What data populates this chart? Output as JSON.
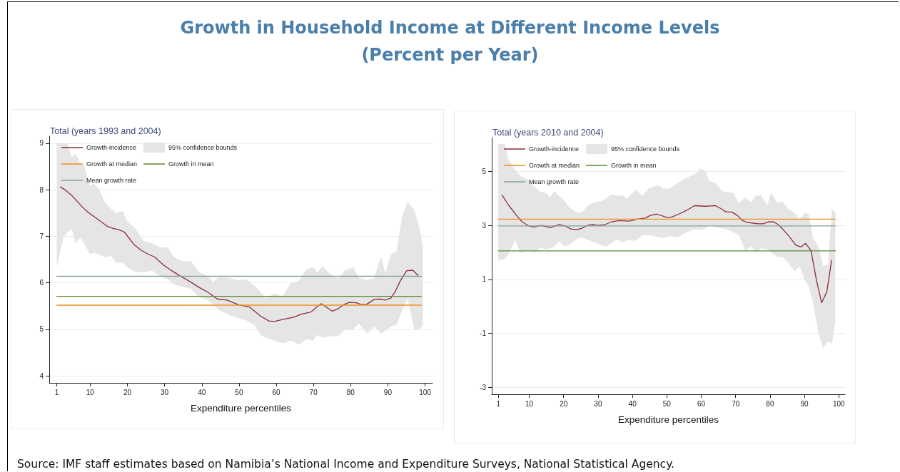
{
  "chart_data": [
    {
      "type": "other",
      "title": "Growth in Household Income at Different Income Levels",
      "subtitle": "(Percent per Year)",
      "annotations": [
        "Source: IMF staff estimates based on Namibia’s National Income and Expenditure Surveys, National Statistical Agency."
      ]
    },
    {
      "type": "line",
      "title": "Total (years 1993 and 2004)",
      "xlabel": "Expenditure percentiles",
      "xlim": [
        -1,
        102
      ],
      "xticks": [
        1,
        10,
        20,
        30,
        40,
        50,
        60,
        70,
        80,
        90,
        100
      ],
      "ylim": [
        3.85,
        9.15
      ],
      "yticks": [
        4,
        5,
        6,
        7,
        8,
        9
      ],
      "grid": "y",
      "legend": "top left",
      "marker": "none",
      "line_style": "solid",
      "series": [
        {
          "name": "Growth-incidence",
          "type": "line",
          "color": "#8c2d3a",
          "x": [
            2.0,
            3.2,
            5.0,
            8.0,
            9.5,
            12.5,
            14.7,
            16.2,
            17.7,
            19.2,
            21.8,
            23.7,
            25.2,
            27.4,
            29.6,
            31.9,
            34.1,
            36.3,
            39.3,
            41.6,
            44.2,
            46.8,
            49.8,
            52.8,
            54.2,
            55.7,
            58.0,
            59.5,
            61.7,
            64.7,
            66.9,
            69.2,
            69.9,
            71.0,
            72.1,
            73.6,
            75.1,
            76.6,
            78.1,
            79.6,
            81.5,
            82.6,
            84.1,
            86.3,
            87.8,
            89.3,
            90.8,
            91.9,
            93.4,
            95.1,
            96.7,
            98.1
          ],
          "values": [
            8.06,
            8.0,
            7.88,
            7.62,
            7.51,
            7.34,
            7.21,
            7.17,
            7.14,
            7.09,
            6.82,
            6.7,
            6.63,
            6.55,
            6.39,
            6.26,
            6.15,
            6.05,
            5.9,
            5.8,
            5.65,
            5.63,
            5.53,
            5.48,
            5.39,
            5.29,
            5.18,
            5.17,
            5.21,
            5.26,
            5.33,
            5.37,
            5.41,
            5.49,
            5.55,
            5.47,
            5.39,
            5.44,
            5.53,
            5.58,
            5.57,
            5.54,
            5.53,
            5.64,
            5.65,
            5.63,
            5.67,
            5.8,
            6.05,
            6.26,
            6.27,
            6.16
          ]
        },
        {
          "name": "Growth at median",
          "type": "line",
          "color": "#f0901e",
          "x": [
            1,
            99
          ],
          "values": [
            5.52,
            5.52
          ]
        },
        {
          "name": "Mean growth rate",
          "type": "line",
          "color": "#86a39a",
          "x": [
            1,
            99
          ],
          "values": [
            6.14,
            6.14
          ]
        },
        {
          "name": "95% confidence bounds",
          "type": "area",
          "color": "#e5e5e5",
          "values": [
            null,
            null,
            null,
            null,
            null,
            null,
            null,
            null,
            null,
            null,
            null,
            null,
            null,
            null,
            null,
            null,
            null,
            null,
            null,
            null,
            null,
            null,
            null,
            null,
            null,
            null,
            null,
            null,
            null,
            null,
            null,
            null,
            null,
            null,
            null,
            null,
            null,
            null,
            null,
            null,
            null,
            null,
            null,
            null,
            null,
            null,
            null,
            null,
            null,
            null,
            null,
            null,
            null,
            null,
            null,
            null,
            null
          ],
          "x": [
            1,
            2.8,
            3.9,
            5.0,
            6.1,
            7.3,
            8.4,
            9.9,
            11.0,
            12.5,
            14.0,
            15.5,
            17.0,
            18.8,
            19.9,
            22.2,
            24.4,
            26.7,
            28.9,
            30.8,
            32.6,
            34.9,
            37.1,
            39.3,
            41.6,
            43.1,
            44.5,
            47.5,
            49.8,
            52.0,
            54.2,
            55.7,
            57.2,
            59.5,
            61.7,
            63.9,
            66.2,
            68.0,
            69.9,
            71.0,
            72.5,
            74.4,
            76.6,
            78.5,
            80.7,
            82.2,
            84.4,
            86.3,
            88.2,
            89.3,
            90.8,
            92.3,
            93.8,
            95.3,
            97.1,
            98.6,
            99.4
          ],
          "upper": [
            9.0,
            9.0,
            9.0,
            8.7,
            8.77,
            8.58,
            8.52,
            8.08,
            8.13,
            7.99,
            7.72,
            7.6,
            7.5,
            7.54,
            7.33,
            7.16,
            6.9,
            6.85,
            6.76,
            6.76,
            6.55,
            6.46,
            6.46,
            6.23,
            6.14,
            6.02,
            6.12,
            6.1,
            6.05,
            6.08,
            5.93,
            5.81,
            5.67,
            5.77,
            5.72,
            5.99,
            6.05,
            6.29,
            6.33,
            6.23,
            6.36,
            6.2,
            6.09,
            6.27,
            6.33,
            6.11,
            6.06,
            6.1,
            6.57,
            6.2,
            6.61,
            6.67,
            7.42,
            7.74,
            7.56,
            7.15,
            6.74
          ],
          "lower": [
            6.33,
            6.97,
            7.09,
            7.15,
            6.85,
            6.97,
            6.85,
            6.61,
            6.64,
            6.61,
            6.55,
            6.58,
            6.43,
            6.43,
            6.34,
            6.23,
            6.23,
            6.26,
            6.14,
            6.08,
            5.96,
            5.91,
            5.87,
            5.69,
            5.63,
            5.53,
            5.42,
            5.3,
            5.24,
            5.19,
            5.09,
            4.89,
            4.82,
            4.76,
            4.7,
            4.76,
            4.67,
            4.79,
            4.76,
            4.88,
            4.82,
            4.85,
            4.85,
            5.0,
            5.0,
            5.12,
            4.91,
            5.06,
            4.91,
            4.97,
            5.06,
            5.09,
            5.39,
            5.66,
            5.0,
            5.0,
            5.09
          ]
        },
        {
          "name": "Growth in mean",
          "type": "line",
          "color": "#5a8a2e",
          "x": [
            1,
            99
          ],
          "values": [
            5.71,
            5.71
          ]
        }
      ]
    },
    {
      "type": "line",
      "title": "Total (years 2010 and 2004)",
      "xlabel": "Expenditure percentiles",
      "xlim": [
        -0.9,
        101.8
      ],
      "xticks": [
        1,
        10,
        20,
        30,
        40,
        50,
        60,
        70,
        80,
        90,
        100
      ],
      "ylim": [
        -3.25,
        6.25
      ],
      "yticks": [
        -3,
        -1,
        1,
        3,
        5
      ],
      "grid": "y",
      "legend": "top left",
      "marker": "none",
      "line_style": "solid",
      "series": [
        {
          "name": "Growth-incidence",
          "type": "line",
          "color": "#8c2d3a",
          "x": [
            2.1,
            4.0,
            6.3,
            7.8,
            9.7,
            11.2,
            13.5,
            16.1,
            18.7,
            20.3,
            22.1,
            23.7,
            25.2,
            27.1,
            28.6,
            30.1,
            32.0,
            33.9,
            36.1,
            39.1,
            41.4,
            43.7,
            45.2,
            47.1,
            50.1,
            51.6,
            53.5,
            55.8,
            58.0,
            61.4,
            62.6,
            64.1,
            65.6,
            67.1,
            69.0,
            70.5,
            72.0,
            73.5,
            76.5,
            78.0,
            79.5,
            81.1,
            82.6,
            85.2,
            87.5,
            89.0,
            90.3,
            91.9,
            93.5,
            95.0,
            96.5,
            97.9
          ],
          "values": [
            4.12,
            3.75,
            3.37,
            3.15,
            2.99,
            2.94,
            3.0,
            2.92,
            3.03,
            2.99,
            2.87,
            2.84,
            2.89,
            3.01,
            3.03,
            3.0,
            3.03,
            3.13,
            3.18,
            3.16,
            3.23,
            3.27,
            3.37,
            3.42,
            3.29,
            3.32,
            3.42,
            3.56,
            3.73,
            3.71,
            3.72,
            3.73,
            3.63,
            3.51,
            3.49,
            3.37,
            3.18,
            3.11,
            3.06,
            3.06,
            3.13,
            3.13,
            3.01,
            2.65,
            2.27,
            2.2,
            2.34,
            2.07,
            0.97,
            0.14,
            0.54,
            1.71
          ]
        },
        {
          "name": "Growth at median",
          "type": "line",
          "color": "#f0901e",
          "x": [
            1,
            99
          ],
          "values": [
            3.23,
            3.23
          ]
        },
        {
          "name": "Mean growth rate",
          "type": "line",
          "color": "#86a39a",
          "x": [
            1,
            99
          ],
          "values": [
            2.98,
            2.98
          ]
        },
        {
          "name": "95% confidence bounds",
          "type": "area",
          "color": "#e5e5e5",
          "values": [
            null,
            null,
            null,
            null,
            null,
            null,
            null,
            null,
            null,
            null,
            null,
            null,
            null,
            null,
            null,
            null,
            null,
            null,
            null,
            null,
            null,
            null,
            null,
            null,
            null,
            null,
            null,
            null,
            null,
            null,
            null,
            null,
            null,
            null,
            null,
            null,
            null,
            null,
            null,
            null,
            null,
            null,
            null,
            null,
            null,
            null,
            null,
            null,
            null,
            null,
            null,
            null,
            null,
            null,
            null,
            null,
            null,
            null,
            null,
            null,
            null
          ],
          "x": [
            1,
            2.9,
            4.0,
            5.9,
            7.4,
            9.7,
            11.6,
            13.1,
            15.0,
            16.1,
            17.2,
            18.7,
            20.3,
            21.8,
            24.0,
            25.5,
            27.1,
            28.9,
            30.8,
            32.3,
            33.9,
            35.4,
            37.3,
            38.4,
            41.0,
            42.9,
            44.8,
            47.4,
            49.0,
            50.8,
            53.1,
            55.0,
            56.1,
            58.0,
            59.9,
            61.4,
            62.2,
            64.1,
            66.0,
            67.5,
            69.4,
            70.9,
            72.8,
            74.6,
            75.8,
            77.3,
            79.2,
            80.3,
            82.2,
            83.7,
            85.2,
            87.1,
            88.6,
            90.1,
            91.3,
            92.4,
            94.1,
            95.4,
            96.9,
            98.0,
            99.0
          ],
          "upper": [
            6.01,
            6.01,
            5.43,
            5.05,
            4.84,
            4.68,
            4.42,
            4.26,
            4.18,
            4.04,
            4.28,
            4.09,
            3.9,
            3.66,
            3.47,
            3.51,
            3.75,
            3.85,
            3.9,
            4.0,
            4.16,
            4.1,
            4.1,
            4.0,
            4.33,
            4.09,
            4.38,
            4.49,
            4.36,
            4.36,
            4.57,
            4.71,
            4.78,
            4.9,
            5.1,
            4.98,
            4.66,
            4.57,
            4.28,
            4.23,
            4.2,
            3.82,
            4.04,
            3.85,
            4.09,
            4.12,
            3.75,
            4.21,
            3.82,
            3.88,
            3.61,
            3.47,
            3.23,
            3.47,
            3.42,
            2.55,
            2.22,
            1.5,
            1.55,
            3.61,
            3.47
          ],
          "lower": [
            1.69,
            1.75,
            1.93,
            2.46,
            1.98,
            2.07,
            1.98,
            2.17,
            2.12,
            2.15,
            2.22,
            2.41,
            2.22,
            2.3,
            2.51,
            2.55,
            2.46,
            2.38,
            2.27,
            2.22,
            2.34,
            2.48,
            2.38,
            2.45,
            2.44,
            2.63,
            2.65,
            2.57,
            2.53,
            2.6,
            2.55,
            2.7,
            2.76,
            2.86,
            2.83,
            2.9,
            2.99,
            2.94,
            2.89,
            2.85,
            2.75,
            2.65,
            2.07,
            2.22,
            2.0,
            2.15,
            2.12,
            2.0,
            1.83,
            1.83,
            1.64,
            1.31,
            1.48,
            0.97,
            0.72,
            0.2,
            -1.0,
            -1.55,
            -1.3,
            -1.38,
            -0.52
          ]
        },
        {
          "name": "Growth in mean",
          "type": "line",
          "color": "#5a8a2e",
          "x": [
            1,
            99
          ],
          "values": [
            2.06,
            2.06
          ]
        }
      ]
    }
  ]
}
